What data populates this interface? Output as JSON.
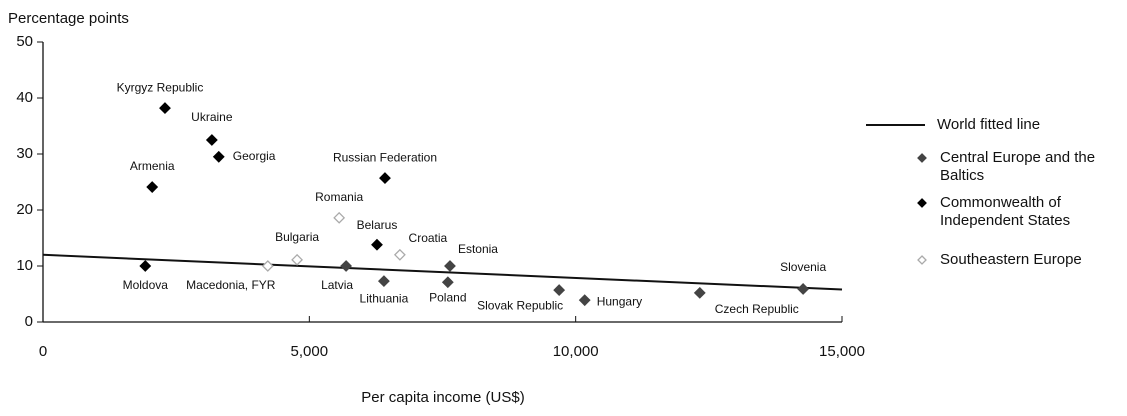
{
  "chart_data": {
    "type": "scatter",
    "ylabel": "Percentage points",
    "xlabel": "Per capita income (US$)",
    "xlim": [
      0,
      15000
    ],
    "ylim": [
      0,
      50
    ],
    "xticks": [
      0,
      {
        "value": 5000,
        "label": "5,000"
      },
      {
        "value": 10000,
        "label": "10,000"
      },
      {
        "value": 15000,
        "label": "15,000"
      }
    ],
    "yticks": [
      0,
      10,
      20,
      30,
      40,
      50
    ],
    "series": [
      {
        "name": "World fitted line",
        "type": "line",
        "color": "#111111",
        "x": [
          0,
          15000
        ],
        "values": [
          12,
          5.8
        ]
      },
      {
        "name": "Central Europe and the Baltics",
        "color": "#444444",
        "marker": "filled",
        "labels": [
          "Estonia",
          "Latvia",
          "Lithuania",
          "Poland",
          "Slovak Republic",
          "Hungary",
          "Czech Republic",
          "Slovenia"
        ],
        "x": [
          7640,
          5690,
          6400,
          7600,
          9690,
          10170,
          12330,
          14270
        ],
        "values": [
          10,
          10,
          7.3,
          7.1,
          5.7,
          3.9,
          5.2,
          5.9
        ]
      },
      {
        "name": "Commonwealth of Independent States",
        "color": "#000000",
        "marker": "filled",
        "labels": [
          "Kyrgyz Republic",
          "Ukraine",
          "Georgia",
          "Armenia",
          "Russian Federation",
          "Belarus",
          "Moldova"
        ],
        "x": [
          2290,
          3170,
          3300,
          2050,
          6420,
          6270,
          1920
        ],
        "values": [
          38.2,
          32.5,
          29.5,
          24.1,
          25.7,
          13.8,
          10
        ]
      },
      {
        "name": "Southeastern Europe",
        "color": "#aaaaaa",
        "marker": "hollow",
        "labels": [
          "Romania",
          "Bulgaria",
          "Croatia",
          "Macedonia, FYR"
        ],
        "x": [
          5560,
          4770,
          6700,
          4220
        ],
        "values": [
          18.6,
          11.1,
          12,
          10
        ]
      }
    ]
  }
}
